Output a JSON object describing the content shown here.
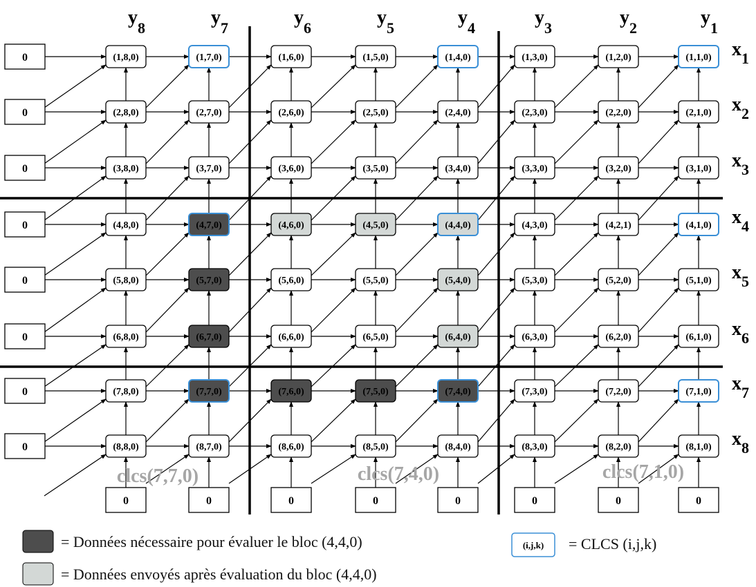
{
  "columns": [
    "8",
    "7",
    "6",
    "5",
    "4",
    "3",
    "2",
    "1"
  ],
  "rows": [
    "1",
    "2",
    "3",
    "4",
    "5",
    "6",
    "7",
    "8"
  ],
  "col_prefix": "y",
  "row_prefix": "x",
  "cells": [
    [
      "(1,8,0)",
      "(1,7,0)",
      "(1,6,0)",
      "(1,5,0)",
      "(1,4,0)",
      "(1,3,0)",
      "(1,2,0)",
      "(1,1,0)"
    ],
    [
      "(2,8,0)",
      "(2,7,0)",
      "(2,6,0)",
      "(2,5,0)",
      "(2,4,0)",
      "(2,3,0)",
      "(2,2,0)",
      "(2,1,0)"
    ],
    [
      "(3,8,0)",
      "(3,7,0)",
      "(3,6,0)",
      "(3,5,0)",
      "(3,4,0)",
      "(3,3,0)",
      "(3,2,0)",
      "(3,1,0)"
    ],
    [
      "(4,8,0)",
      "(4,7,0)",
      "(4,6,0)",
      "(4,5,0)",
      "(4,4,0)",
      "(4,3,0)",
      "(4,2,1)",
      "(4,1,0)"
    ],
    [
      "(5,8,0)",
      "(5,7,0)",
      "(5,6,0)",
      "(5,5,0)",
      "(5,4,0)",
      "(5,3,0)",
      "(5,2,0)",
      "(5,1,0)"
    ],
    [
      "(6,8,0)",
      "(6,7,0)",
      "(6,6,0)",
      "(6,5,0)",
      "(6,4,0)",
      "(6,3,0)",
      "(6,2,0)",
      "(6,1,0)"
    ],
    [
      "(7,8,0)",
      "(7,7,0)",
      "(7,6,0)",
      "(7,5,0)",
      "(7,4,0)",
      "(7,3,0)",
      "(7,2,0)",
      "(7,1,0)"
    ],
    [
      "(8,8,0)",
      "(8,7,0)",
      "(8,6,0)",
      "(8,5,0)",
      "(8,4,0)",
      "(8,3,0)",
      "(8,2,0)",
      "(8,1,0)"
    ]
  ],
  "cell_styles": [
    [
      "normal",
      "clcs",
      "normal",
      "normal",
      "clcs",
      "normal",
      "normal",
      "clcs"
    ],
    [
      "normal",
      "normal",
      "normal",
      "normal",
      "normal",
      "normal",
      "normal",
      "normal"
    ],
    [
      "normal",
      "normal",
      "normal",
      "normal",
      "normal",
      "normal",
      "normal",
      "normal"
    ],
    [
      "normal",
      "dark-clcs",
      "light",
      "light",
      "light-clcs",
      "normal",
      "normal",
      "clcs"
    ],
    [
      "normal",
      "dark",
      "normal",
      "normal",
      "light",
      "normal",
      "normal",
      "normal"
    ],
    [
      "normal",
      "dark",
      "normal",
      "normal",
      "light",
      "normal",
      "normal",
      "normal"
    ],
    [
      "normal",
      "dark-clcs",
      "dark",
      "dark",
      "dark-clcs",
      "normal",
      "normal",
      "clcs"
    ],
    [
      "normal",
      "normal",
      "normal",
      "normal",
      "normal",
      "normal",
      "normal",
      "normal"
    ]
  ],
  "boundary_value": "0",
  "clcs_labels": [
    "clcs(7,7,0)",
    "clcs(7,4,0)",
    "clcs(7,1,0)"
  ],
  "legend": {
    "dark_text": "= Données nécessaire pour évaluer le bloc (4,4,0)",
    "light_text": "= Données envoyés après évaluation du bloc (4,4,0)",
    "clcs_sample": "(i,j,k)",
    "clcs_text": "= CLCS (i,j,k)"
  },
  "colors": {
    "dark_fill": "#4d4d4d",
    "light_fill": "#d3d8d6",
    "clcs_border": "#3a8fd6",
    "node_fill": "#ffffff",
    "line": "#000000",
    "clcs_label": "#a6a6a6"
  }
}
